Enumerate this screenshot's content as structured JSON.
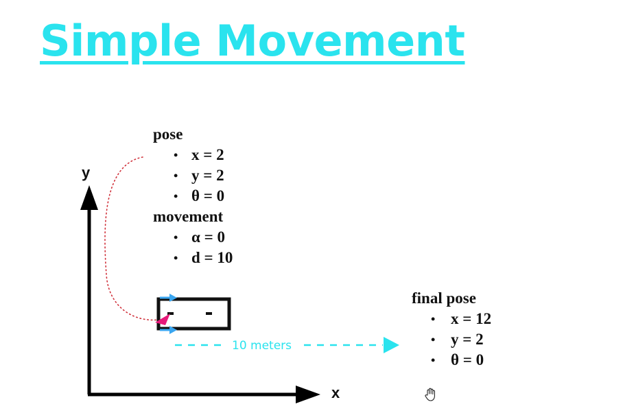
{
  "title": "Simple Movement",
  "pose": {
    "heading": "pose",
    "items": [
      "x = 2",
      "y = 2",
      "θ = 0"
    ]
  },
  "movement": {
    "heading": "movement",
    "items": [
      "α = 0",
      "d = 10"
    ]
  },
  "final_pose": {
    "heading": "final pose",
    "items": [
      "x = 12",
      "y = 2",
      "θ = 0"
    ]
  },
  "axes": {
    "x_label": "x",
    "y_label": "y"
  },
  "distance_label": "10 meters",
  "bullet": "•",
  "colors": {
    "title": "#2ae3ee",
    "distance_arrow": "#2ae3ee",
    "robot_markers": "#3aa6f0",
    "robot_heading": "#e8197a",
    "connector": "#d0303a",
    "axes": "#000000"
  },
  "icons": {
    "cursor": "hand-cursor-icon"
  }
}
